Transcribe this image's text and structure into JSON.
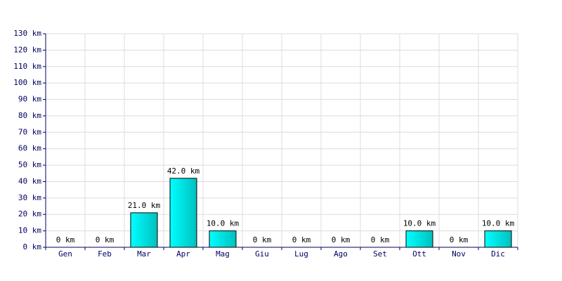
{
  "chart_data": {
    "type": "bar",
    "categories": [
      "Gen",
      "Feb",
      "Mar",
      "Apr",
      "Mag",
      "Giu",
      "Lug",
      "Ago",
      "Set",
      "Ott",
      "Nov",
      "Dic"
    ],
    "values": [
      0,
      0,
      21,
      42,
      10,
      0,
      0,
      0,
      0,
      10,
      0,
      10
    ],
    "value_labels": [
      "0 km",
      "0 km",
      "21.0 km",
      "42.0 km",
      "10.0 km",
      "0 km",
      "0 km",
      "0 km",
      "0 km",
      "10.0 km",
      "0 km",
      "10.0 km"
    ],
    "color": "#00c0c0",
    "ylim": [
      0,
      130
    ],
    "yticks": [
      {
        "value": 0,
        "label": "0 km"
      },
      {
        "value": 10,
        "label": "10 km"
      },
      {
        "value": 20,
        "label": "20 km"
      },
      {
        "value": 30,
        "label": "30 km"
      },
      {
        "value": 40,
        "label": "40 km"
      },
      {
        "value": 50,
        "label": "50 km"
      },
      {
        "value": 60,
        "label": "60 km"
      },
      {
        "value": 70,
        "label": "70 km"
      },
      {
        "value": 80,
        "label": "80 km"
      },
      {
        "value": 90,
        "label": "90 km"
      },
      {
        "value": 100,
        "label": "100 km"
      },
      {
        "value": 110,
        "label": "110 km"
      },
      {
        "value": 120,
        "label": "120 km"
      },
      {
        "value": 130,
        "label": "130 km"
      }
    ],
    "grid": true
  }
}
